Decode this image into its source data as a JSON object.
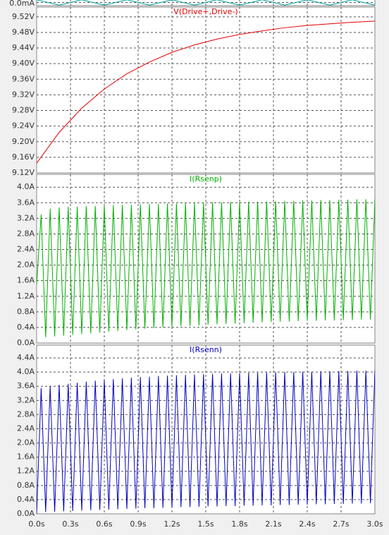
{
  "chart_data": [
    {
      "type": "line",
      "x": [
        0,
        0.2,
        0.4,
        0.6,
        0.8,
        1,
        1.2,
        1.4,
        1.6,
        1.8,
        2,
        2.2,
        2.4,
        2.6,
        2.8,
        3
      ],
      "series": [
        {
          "color": "#00a0a0",
          "values": [
            0.5,
            -0.5,
            0.5,
            -0.5,
            0.5,
            -0.5,
            0.5,
            -0.5,
            0.5,
            -0.5,
            0.5,
            -0.5,
            0.5,
            -0.5,
            0.5,
            -0.5
          ]
        }
      ],
      "ylim": [
        -0.6,
        0.6
      ],
      "yticks": [
        {
          "value": 0,
          "label": "0.0mA"
        }
      ]
    },
    {
      "type": "line",
      "x": [
        0,
        0.2,
        0.4,
        0.6,
        0.8,
        1,
        1.2,
        1.4,
        1.6,
        1.8,
        2,
        2.2,
        2.4,
        2.6,
        2.8,
        3
      ],
      "series": [
        {
          "name": "V(Drive+,Drive-)",
          "color": "#e00000",
          "values": [
            9.145,
            9.224,
            9.286,
            9.335,
            9.374,
            9.404,
            9.429,
            9.448,
            9.463,
            9.475,
            9.484,
            9.492,
            9.498,
            9.502,
            9.506,
            9.509
          ]
        }
      ],
      "ylim": [
        9.12,
        9.545
      ],
      "yticks": [
        {
          "value": 9.12,
          "label": "9.12V"
        },
        {
          "value": 9.16,
          "label": "9.16V"
        },
        {
          "value": 9.2,
          "label": "9.20V"
        },
        {
          "value": 9.24,
          "label": "9.24V"
        },
        {
          "value": 9.28,
          "label": "9.28V"
        },
        {
          "value": 9.32,
          "label": "9.32V"
        },
        {
          "value": 9.36,
          "label": "9.36V"
        },
        {
          "value": 9.4,
          "label": "9.40V"
        },
        {
          "value": 9.44,
          "label": "9.44V"
        },
        {
          "value": 9.48,
          "label": "9.48V"
        },
        {
          "value": 9.52,
          "label": "9.52V"
        }
      ]
    },
    {
      "type": "line",
      "x": [
        0,
        0.04,
        0.08,
        0.12,
        0.16,
        0.2,
        0.24,
        0.28,
        0.32,
        0.36,
        0.4,
        0.44,
        0.48,
        0.52,
        0.56,
        0.6,
        0.64,
        0.68,
        0.72,
        0.76,
        0.8,
        0.84,
        0.88,
        0.92,
        0.96,
        1,
        1.04,
        1.08,
        1.12,
        1.16,
        1.2,
        1.24,
        1.28,
        1.32,
        1.36,
        1.4,
        1.44,
        1.48,
        1.52,
        1.56,
        1.6,
        1.64,
        1.68,
        1.72,
        1.76,
        1.8,
        1.84,
        1.88,
        1.92,
        1.96,
        2,
        2.04,
        2.08,
        2.12,
        2.16,
        2.2,
        2.24,
        2.28,
        2.32,
        2.36,
        2.4,
        2.44,
        2.48,
        2.52,
        2.56,
        2.6,
        2.64,
        2.68,
        2.72,
        2.76,
        2.8,
        2.84,
        2.88,
        2.92,
        2.96,
        3
      ],
      "series": [
        {
          "name": "I(Rsenp)",
          "color": "#00b000",
          "values": [
            1.5,
            3.3,
            0.15,
            3.45,
            0.17,
            3.48,
            0.19,
            3.5,
            0.21,
            3.5,
            0.23,
            3.52,
            0.25,
            3.52,
            0.27,
            3.53,
            0.29,
            3.54,
            0.31,
            3.55,
            0.33,
            3.55,
            0.35,
            3.56,
            0.37,
            3.57,
            0.38,
            3.57,
            0.4,
            3.58,
            0.41,
            3.58,
            0.43,
            3.59,
            0.44,
            3.6,
            0.45,
            3.6,
            0.47,
            3.61,
            0.48,
            3.61,
            0.49,
            3.62,
            0.5,
            3.62,
            0.51,
            3.63,
            0.52,
            3.63,
            0.53,
            3.64,
            0.54,
            3.64,
            0.55,
            3.65,
            0.55,
            3.65,
            0.56,
            3.66,
            0.57,
            3.66,
            0.57,
            3.67,
            0.58,
            3.67,
            0.58,
            3.68,
            0.59,
            3.68,
            0.59,
            3.69,
            0.6,
            3.69,
            0.6,
            3.7
          ]
        }
      ],
      "ylim": [
        0,
        4.33
      ],
      "yticks": [
        {
          "value": 0,
          "label": "0.0A"
        },
        {
          "value": 0.4,
          "label": "0.4A"
        },
        {
          "value": 0.8,
          "label": "0.8A"
        },
        {
          "value": 1.2,
          "label": "1.2A"
        },
        {
          "value": 1.6,
          "label": "1.6A"
        },
        {
          "value": 2.0,
          "label": "2.0A"
        },
        {
          "value": 2.4,
          "label": "2.4A"
        },
        {
          "value": 2.8,
          "label": "2.8A"
        },
        {
          "value": 3.2,
          "label": "3.2A"
        },
        {
          "value": 3.6,
          "label": "3.6A"
        },
        {
          "value": 4.0,
          "label": "4.0A"
        }
      ]
    },
    {
      "type": "line",
      "x": [
        0,
        0.04,
        0.08,
        0.12,
        0.16,
        0.2,
        0.24,
        0.28,
        0.32,
        0.36,
        0.4,
        0.44,
        0.48,
        0.52,
        0.56,
        0.6,
        0.64,
        0.68,
        0.72,
        0.76,
        0.8,
        0.84,
        0.88,
        0.92,
        0.96,
        1,
        1.04,
        1.08,
        1.12,
        1.16,
        1.2,
        1.24,
        1.28,
        1.32,
        1.36,
        1.4,
        1.44,
        1.48,
        1.52,
        1.56,
        1.6,
        1.64,
        1.68,
        1.72,
        1.76,
        1.8,
        1.84,
        1.88,
        1.92,
        1.96,
        2,
        2.04,
        2.08,
        2.12,
        2.16,
        2.2,
        2.24,
        2.28,
        2.32,
        2.36,
        2.4,
        2.44,
        2.48,
        2.52,
        2.56,
        2.6,
        2.64,
        2.68,
        2.72,
        2.76,
        2.8,
        2.84,
        2.88,
        2.92,
        2.96,
        3
      ],
      "series": [
        {
          "name": "I(Rsenn)",
          "color": "#0000c0",
          "values": [
            0,
            3.55,
            0.05,
            3.6,
            0.06,
            3.64,
            0.07,
            3.67,
            0.08,
            3.7,
            0.09,
            3.73,
            0.1,
            3.76,
            0.11,
            3.78,
            0.12,
            3.8,
            0.13,
            3.82,
            0.14,
            3.84,
            0.15,
            3.86,
            0.16,
            3.87,
            0.16,
            3.89,
            0.17,
            3.9,
            0.18,
            3.91,
            0.19,
            3.92,
            0.19,
            3.93,
            0.2,
            3.94,
            0.21,
            3.95,
            0.21,
            3.96,
            0.22,
            3.96,
            0.22,
            3.97,
            0.23,
            3.98,
            0.23,
            3.98,
            0.24,
            3.99,
            0.24,
            3.99,
            0.25,
            4,
            0.25,
            4,
            0.26,
            4.01,
            0.26,
            4.01,
            0.27,
            4.02,
            0.27,
            4.02,
            0.28,
            4.03,
            0.28,
            4.03,
            0.29,
            4.04,
            0.29,
            4.04,
            0.3,
            4.05
          ]
        }
      ],
      "ylim": [
        0,
        4.76
      ],
      "yticks": [
        {
          "value": 0,
          "label": "0.0A"
        },
        {
          "value": 0.4,
          "label": "0.4A"
        },
        {
          "value": 0.8,
          "label": "0.8A"
        },
        {
          "value": 1.2,
          "label": "1.2A"
        },
        {
          "value": 1.6,
          "label": "1.6A"
        },
        {
          "value": 2.0,
          "label": "2.0A"
        },
        {
          "value": 2.4,
          "label": "2.4A"
        },
        {
          "value": 2.8,
          "label": "2.8A"
        },
        {
          "value": 3.2,
          "label": "3.2A"
        },
        {
          "value": 3.6,
          "label": "3.6A"
        },
        {
          "value": 4.0,
          "label": "4.0A"
        },
        {
          "value": 4.4,
          "label": "4.4A"
        }
      ],
      "xlim": [
        0,
        3
      ],
      "xticks": [
        {
          "value": 0,
          "label": "0.0s"
        },
        {
          "value": 0.3,
          "label": "0.3s"
        },
        {
          "value": 0.6,
          "label": "0.6s"
        },
        {
          "value": 0.9,
          "label": "0.9s"
        },
        {
          "value": 1.2,
          "label": "1.2s"
        },
        {
          "value": 1.5,
          "label": "1.5s"
        },
        {
          "value": 1.8,
          "label": "1.8s"
        },
        {
          "value": 2.1,
          "label": "2.1s"
        },
        {
          "value": 2.4,
          "label": "2.4s"
        },
        {
          "value": 2.7,
          "label": "2.7s"
        },
        {
          "value": 3.0,
          "label": "3.0s"
        }
      ]
    }
  ]
}
